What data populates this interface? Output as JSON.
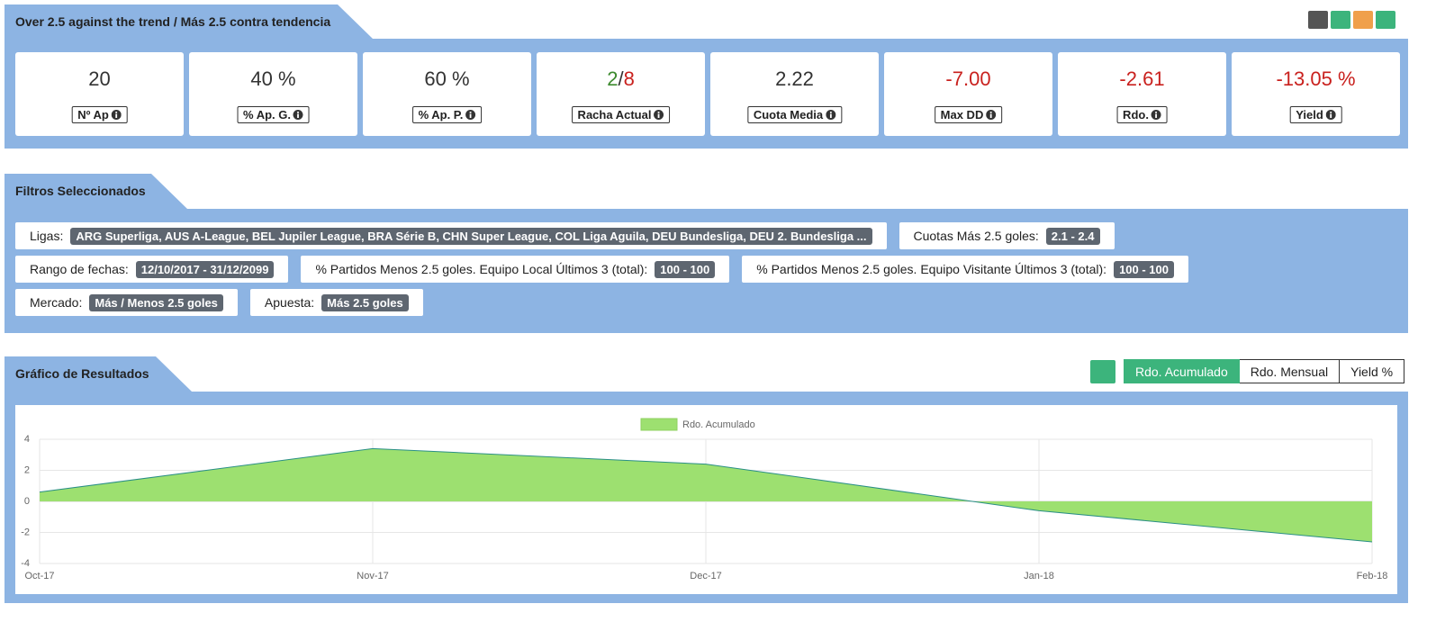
{
  "header": {
    "title": "Over 2.5 against the trend / Más 2.5 contra tendencia"
  },
  "stats": [
    {
      "value": "20",
      "label": "Nº Ap",
      "color": "#333333"
    },
    {
      "value": "40 %",
      "label": "% Ap. G.",
      "color": "#333333"
    },
    {
      "value": "60 %",
      "label": "% Ap. P.",
      "color": "#333333"
    },
    {
      "parts": [
        {
          "text": "2",
          "color": "#3c8a2e"
        },
        {
          "text": "/",
          "color": "#333333"
        },
        {
          "text": "8",
          "color": "#c9211e"
        }
      ],
      "label": "Racha Actual"
    },
    {
      "value": "2.22",
      "label": "Cuota Media",
      "color": "#333333"
    },
    {
      "value": "-7.00",
      "label": "Max DD",
      "color": "#c9211e"
    },
    {
      "value": "-2.61",
      "label": "Rdo.",
      "color": "#c9211e"
    },
    {
      "value": "-13.05 %",
      "label": "Yield",
      "color": "#c9211e"
    }
  ],
  "filters_section": {
    "title": "Filtros Seleccionados",
    "rows": [
      [
        {
          "label": "Ligas:",
          "value": "ARG Superliga, AUS A-League, BEL Jupiler League, BRA Série B, CHN Super League, COL Liga Aguila, DEU Bundesliga, DEU 2. Bundesliga ..."
        },
        {
          "label": "Cuotas Más 2.5 goles:",
          "value": "2.1 - 2.4"
        }
      ],
      [
        {
          "label": "Rango de fechas:",
          "value": "12/10/2017 - 31/12/2099"
        },
        {
          "label": "% Partidos Menos 2.5 goles. Equipo Local Últimos 3 (total):",
          "value": "100 - 100"
        },
        {
          "label": "% Partidos Menos 2.5 goles. Equipo Visitante Últimos 3 (total):",
          "value": "100 - 100"
        }
      ],
      [
        {
          "label": "Mercado:",
          "value": "Más / Menos 2.5 goles"
        },
        {
          "label": "Apuesta:",
          "value": "Más 2.5 goles"
        }
      ]
    ]
  },
  "chart_section": {
    "title": "Gráfico de Resultados",
    "buttons": [
      "Rdo. Acumulado",
      "Rdo. Mensual",
      "Yield %"
    ],
    "active_button": 0
  },
  "chart_data": {
    "type": "area",
    "categories": [
      "Oct-17",
      "Nov-17",
      "Dec-17",
      "Jan-18",
      "Feb-18"
    ],
    "series": [
      {
        "name": "Rdo. Acumulado",
        "color": "#9de070",
        "line_color": "#2a8f86",
        "values": [
          0.6,
          3.4,
          2.4,
          -0.6,
          -2.61
        ]
      }
    ],
    "ylim": [
      -4,
      4
    ],
    "yticks": [
      -4,
      -2,
      0,
      2,
      4
    ],
    "grid": true,
    "legend": "top"
  }
}
